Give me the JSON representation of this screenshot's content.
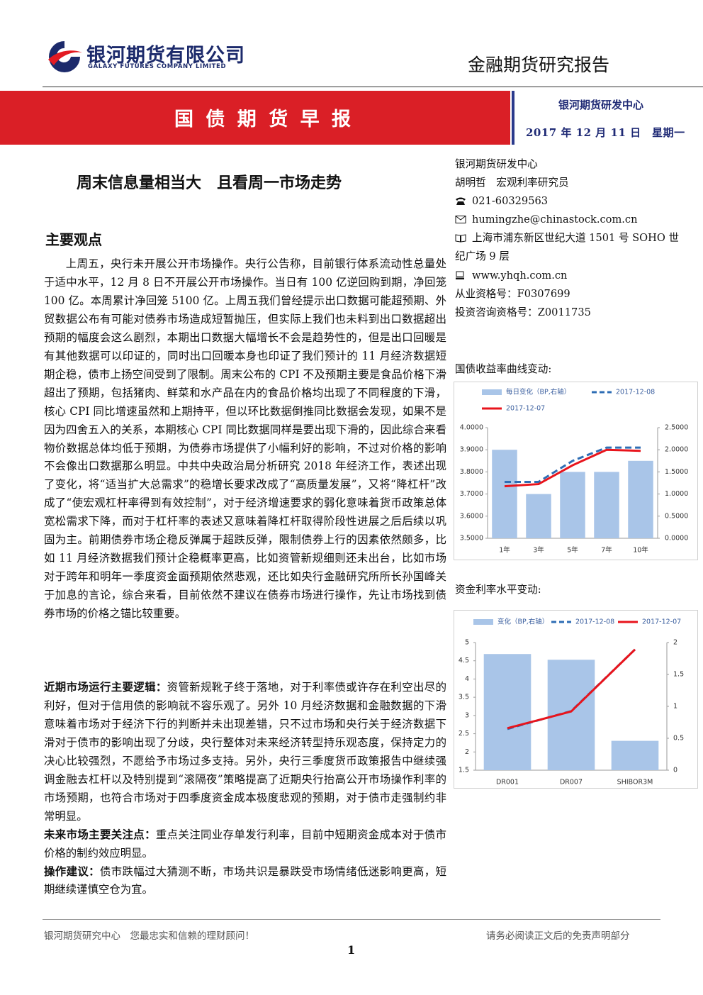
{
  "header": {
    "logo_cn": "银河期货有限公司",
    "logo_en": "GALAXY FUTURES COMPANY LIMITED",
    "report_type": "金融期货研究报告"
  },
  "banner": {
    "title": "国 债 期 货 早 报",
    "center": "银河期货研发中心",
    "date": "2017 年 12 月 11 日　星期一"
  },
  "headline": "周末信息量相当大　且看周一市场走势",
  "section_title": "主要观点",
  "paragraphs": [
    {
      "text": "上周五，央行未开展公开市场操作。央行公告称，目前银行体系流动性总量处于适中水平，12 月 8 日不开展公开市场操作。当日有 100 亿逆回购到期，净回笼 100 亿。本周累计净回笼 5100 亿。上周五我们曾经提示出口数据可能超预期、外贸数据公布有可能对债券市场造成短暂抛压，但实际上我们也未料到出口数据超出预期的幅度会这么剧烈，本期出口数据大幅增长不会是趋势性的，但是出口回暖是有其他数据可以印证的，同时出口回暖本身也印证了我们预计的 11 月经济数据短期企稳，债市上扬空间受到了限制。周末公布的 CPI 不及预期主要是食品价格下滑超出了预期，包括猪肉、鲜菜和水产品在内的食品价格均出现了不同程度的下滑，核心 CPI 同比增速虽然和上期持平，但以环比数据倒推同比数据会发现，如果不是因为四舍五入的关系，本期核心 CPI 同比数据同样是要出现下滑的，因此综合来看物价数据总体均低于预期，为债券市场提供了小幅利好的影响，不过对价格的影响不会像出口数据那么明显。中共中央政治局分析研究 2018 年经济工作，表述出现了变化，将“适当扩大总需求”的稳增长要求改成了“高质量发展”，又将“降杠杆”改成了“使宏观杠杆率得到有效控制”，对于经济增速要求的弱化意味着货币政策总体宽松需求下降，而对于杠杆率的表述又意味着降杠杆取得阶段性进展之后后续以巩固为主。前期债券市场企稳反弹属于超跌反弹，限制债券上行的因素依然颇多，比如 11 月经济数据我们预计企稳概率更高，比如资管新规细则还未出台，比如市场对于跨年和明年一季度资金面预期依然悲观，还比如央行金融研究所所长孙国峰关于加息的言论，综合来看，目前依然不建议在债券市场进行操作，先让市场找到债券市场的价格之锚比较重要。"
    },
    {
      "label": "近期市场运行主要逻辑：",
      "text": "资管新规靴子终于落地，对于利率债或许存在利空出尽的利好，但对于信用债的影响就不容乐观了。另外 10 月经济数据和金融数据的下滑意味着市场对于经济下行的判断并未出现差错，只不过市场和央行关于经济数据下滑对于债市的影响出现了分歧，央行整体对未来经济转型持乐观态度，保持定力的决心比较强烈，不愿给予市场过多支持。另外，央行三季度货币政策报告中继续强调金融去杠杆以及特别提到“滚隔夜”策略提高了近期央行抬高公开市场操作利率的市场预期，也符合市场对于四季度资金成本极度悲观的预期，对于债市走强制约非常明显。"
    },
    {
      "label": "未来市场主要关注点：",
      "text": "重点关注同业存单发行利率，目前中短期资金成本对于债市价格的制约效应明显。"
    },
    {
      "label": "操作建议：",
      "text": "债市跌幅过大猜测不断，市场共识是暴跌受市场情绪低迷影响更高，短期继续谨慎空仓为宜。"
    }
  ],
  "sidebar": {
    "org": "银河期货研发中心",
    "analyst": "胡明哲　宏观利率研究员",
    "phone": "021-60329563",
    "email": "humingzhe@chinastock.com.cn",
    "address": "上海市浦东新区世纪大道 1501 号 SOHO 世纪广场 9 层",
    "website": "www.yhqh.com.cn",
    "qualification": "从业资格号：F0307699",
    "consulting": "投资咨询资格号：Z0011735"
  },
  "chart_data": [
    {
      "type": "bar",
      "title": "国债收益率曲线变动:",
      "categories": [
        "1年",
        "3年",
        "5年",
        "7年",
        "10年"
      ],
      "series": [
        {
          "name": "每日变化（BP,右轴）",
          "type": "bar",
          "color": "#a9c5e8",
          "axis": "y2",
          "values": [
            2.0,
            1.0,
            1.5,
            1.5,
            1.75
          ]
        },
        {
          "name": "2017-12-08",
          "type": "line",
          "dash": true,
          "color": "#2e6db4",
          "values": [
            3.755,
            3.755,
            3.85,
            3.91,
            3.91
          ]
        },
        {
          "name": "2017-12-07",
          "type": "line",
          "dash": false,
          "color": "#e8141c",
          "values": [
            3.735,
            3.745,
            3.83,
            3.9,
            3.895
          ]
        }
      ],
      "ylim": [
        3.5,
        4.0
      ],
      "yticks": [
        {
          "value": 3.5,
          "label": "3.5000"
        },
        {
          "value": 3.6,
          "label": "3.6000"
        },
        {
          "value": 3.7,
          "label": "3.7000"
        },
        {
          "value": 3.8,
          "label": "3.8000"
        },
        {
          "value": 3.9,
          "label": "3.9000"
        },
        {
          "value": 4.0,
          "label": "4.0000"
        }
      ],
      "y2lim": [
        0,
        2.5
      ],
      "y2ticks": [
        {
          "value": 0,
          "label": "0.0000"
        },
        {
          "value": 0.5,
          "label": "0.5000"
        },
        {
          "value": 1.0,
          "label": "1.0000"
        },
        {
          "value": 1.5,
          "label": "1.5000"
        },
        {
          "value": 2.0,
          "label": "2.0000"
        },
        {
          "value": 2.5,
          "label": "2.5000"
        }
      ],
      "legend": "top",
      "grid": false
    },
    {
      "type": "bar",
      "title": "资金利率水平变动:",
      "categories": [
        "DR001",
        "DR007",
        "SHIBOR3M"
      ],
      "series": [
        {
          "name": "变化（BP,右轴）",
          "type": "bar",
          "color": "#a9c5e8",
          "axis": "y2",
          "values": [
            1.82,
            1.73,
            0.46
          ]
        },
        {
          "name": "2017-12-08",
          "type": "line",
          "dash": true,
          "color": "#2e6db4",
          "values": [
            2.63,
            3.12,
            4.81
          ]
        },
        {
          "name": "2017-12-07",
          "type": "line",
          "dash": false,
          "color": "#e8141c",
          "values": [
            2.65,
            3.11,
            4.81
          ]
        }
      ],
      "ylim": [
        1.5,
        5
      ],
      "yticks": [
        1.5,
        2,
        2.5,
        3,
        3.5,
        4,
        4.5,
        5
      ],
      "y2lim": [
        0,
        2
      ],
      "y2ticks": [
        0,
        0.5,
        1,
        1.5,
        2
      ],
      "legend": "top",
      "grid": false
    }
  ],
  "footer": {
    "left": "银河期货研究中心　您最忠实和信赖的理财顾问！",
    "right": "请务必阅读正文后的免责声明部分",
    "page": "1"
  }
}
